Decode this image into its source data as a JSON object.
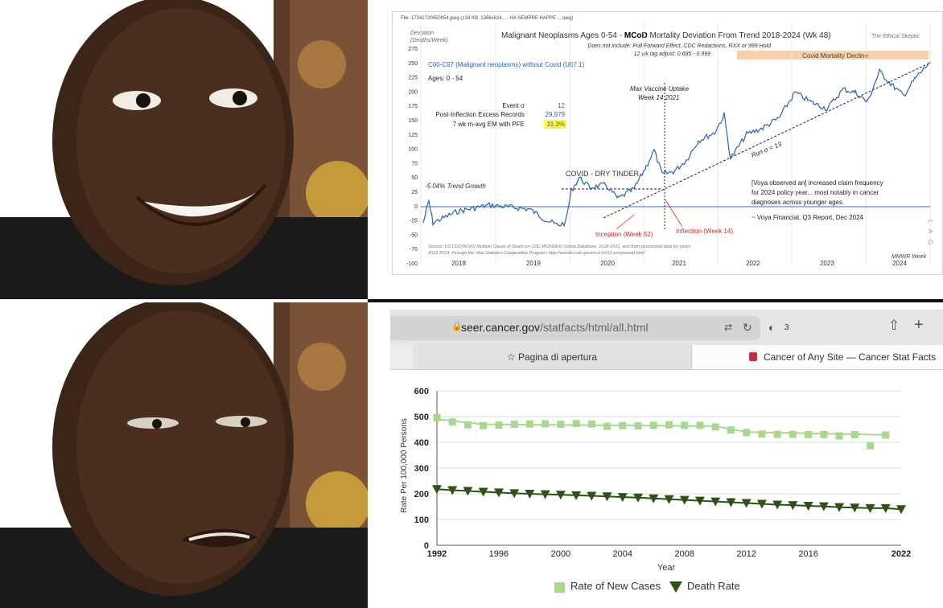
{
  "photo": {
    "top_label": "",
    "bottom_label": ""
  },
  "top_chart": {
    "file_line": "File: 17341720050054.jpeg (134 KB, 1366x824, ... HA SEMPRE HAPPE ... ipeg)",
    "title": "Malignant Neoplasms Ages 0-54 - ",
    "title_bold": "MCoD",
    "title_rest": " Mortality Deviation From Trend  2018-2024 (Wk 48)",
    "subtitle1": "Does not include: Pull Forward Effect,  CDC Redactions, RXX or 999 Hold",
    "subtitle2": "12 wk lag adjust: 0.685 - 0.999",
    "watermark": "The Ethical Skeptic",
    "ylabel": "Deviation",
    "ylabel2": "(Deaths/Week)",
    "series_label": "C00-C97 (Malignant neoplasms) without Covid (U07.1)",
    "ages": "Ages: 0 - 54",
    "stats": [
      {
        "label": "Event σ",
        "value": "12"
      },
      {
        "label": "Post-Inflection Excess Records",
        "value": "29,979"
      },
      {
        "label": "7 wk m-avg EM with PFE",
        "value": "31.3%"
      }
    ],
    "covid_decline": "Covid Mortality Decline",
    "vaccine_note1": "Max Vaccine Uptake",
    "vaccine_note2": "Week 14 2021",
    "dry_tinder": "COVID - DRY TINDER",
    "trend_growth": "-5.04% Trend Growth",
    "inception": "Inception (Week 52)",
    "inflection": "Inflection (Week 14)",
    "run_label": "Run σ = 13",
    "quote1": "[Voya observed an] increased claim frequency",
    "quote2": "for 2024 policy year... most notably in cancer",
    "quote3": "diagnoses across younger ages.",
    "quote_source": "~ Voya Financial, Q3 Report, Dec 2024",
    "lag": "L A G",
    "source1": "Source: US CDC/NCHS Multiple Cause of Death on CDC WONDER Online Database, 2018-2021, and from provisional data for years",
    "source2": "2022-2024, through the Vital Statistics Cooperative Program; http://wonder.cdc.gov/mcd-icd10-provisional.html",
    "mmwr": "MMWR Week",
    "bottom_cut": "... ",
    "yticks": [
      "275",
      "250",
      "225",
      "200",
      "175",
      "150",
      "125",
      "100",
      "75",
      "50",
      "25",
      "0",
      "-25",
      "-50",
      "-75",
      "-100"
    ],
    "xticks": [
      "2018",
      "2019",
      "2020",
      "2021",
      "2022",
      "2023",
      "2024"
    ]
  },
  "browser": {
    "url_domain": "seer.cancer.gov",
    "url_path": "/statfacts/html/all.html",
    "shield_count": "3",
    "tab_start": "Pagina di apertura",
    "tab_active": "Cancer of Any Site — Cancer Stat Facts"
  },
  "chart_data": {
    "type": "line",
    "ylabel": "Rate Per 100,000 Persons",
    "xlabel": "Year",
    "ylim": [
      0,
      600
    ],
    "yticks": [
      "0",
      "100",
      "200",
      "300",
      "400",
      "500",
      "600"
    ],
    "xticks": [
      "1992",
      "1996",
      "2000",
      "2004",
      "2008",
      "2012",
      "2016",
      "2022"
    ],
    "x": [
      1992,
      1993,
      1994,
      1995,
      1996,
      1997,
      1998,
      1999,
      2000,
      2001,
      2002,
      2003,
      2004,
      2005,
      2006,
      2007,
      2008,
      2009,
      2010,
      2011,
      2012,
      2013,
      2014,
      2015,
      2016,
      2017,
      2018,
      2019,
      2020,
      2021,
      2022
    ],
    "series": [
      {
        "name": "Rate of New Cases",
        "color": "#a8d88e",
        "values": [
          496,
          479,
          468,
          465,
          467,
          470,
          471,
          472,
          470,
          473,
          471,
          462,
          465,
          464,
          466,
          468,
          466,
          466,
          460,
          448,
          438,
          432,
          431,
          431,
          430,
          430,
          425,
          430,
          387,
          428,
          null
        ],
        "trend": [
          [
            1992,
            490
          ],
          [
            1995,
            470
          ],
          [
            2010,
            463
          ],
          [
            2012,
            440
          ],
          [
            2021,
            429
          ]
        ]
      },
      {
        "name": "Death Rate",
        "color": "#2d5216",
        "values": [
          218,
          214,
          211,
          208,
          205,
          202,
          200,
          198,
          196,
          194,
          192,
          190,
          187,
          185,
          182,
          179,
          176,
          173,
          170,
          167,
          164,
          161,
          158,
          156,
          153,
          151,
          148,
          146,
          144,
          144,
          140
        ]
      }
    ]
  }
}
